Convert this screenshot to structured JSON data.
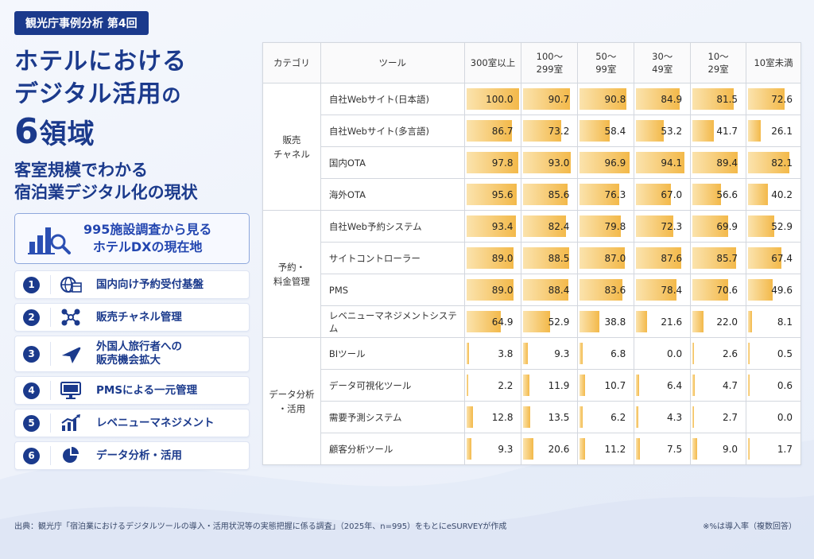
{
  "badge": "観光庁事例分析 第4回",
  "title": {
    "line1": "ホテルにおける",
    "line2_main": "デジタル活用",
    "line2_suffix": "の",
    "line3_num": "6",
    "line3_rest": "領域"
  },
  "subtitle": {
    "line1": "客室規模でわかる",
    "line2": "宿泊業デジタル化の現状"
  },
  "survey_box": {
    "icon": "bar-chart-magnifier-icon",
    "line1": "995施設調査から見る",
    "line2": "ホテルDXの現在地"
  },
  "areas": [
    {
      "num": "1",
      "icon": "globe-calendar-icon",
      "label": [
        "国内向け予約受付基盤"
      ]
    },
    {
      "num": "2",
      "icon": "network-nodes-icon",
      "label": [
        "販売チャネル管理"
      ]
    },
    {
      "num": "3",
      "icon": "airplane-icon",
      "label": [
        "外国人旅行者への",
        "販売機会拡大"
      ]
    },
    {
      "num": "4",
      "icon": "monitor-icon",
      "label": [
        "PMSによる一元管理"
      ]
    },
    {
      "num": "5",
      "icon": "trend-chart-icon",
      "label": [
        "レベニューマネジメント"
      ]
    },
    {
      "num": "6",
      "icon": "pie-chart-icon",
      "label": [
        "データ分析・活用"
      ]
    }
  ],
  "colors": {
    "navy": "#1b3a8c",
    "bar_light": "#fbe3ad",
    "bar_dark": "#f3b94a"
  },
  "table": {
    "headers": {
      "category": "カテゴリ",
      "tool": "ツール",
      "sizes": [
        [
          "300室以上"
        ],
        [
          "100〜",
          "299室"
        ],
        [
          "50〜",
          "99室"
        ],
        [
          "30〜",
          "49室"
        ],
        [
          "10〜",
          "29室"
        ],
        [
          "10室未満"
        ]
      ]
    },
    "groups": [
      {
        "name": [
          "販売",
          "チャネル"
        ],
        "rows": [
          {
            "tool": "自社Webサイト(日本語)",
            "values": [
              100.0,
              90.7,
              90.8,
              84.9,
              81.5,
              72.6
            ]
          },
          {
            "tool": "自社Webサイト(多言語)",
            "values": [
              86.7,
              73.2,
              58.4,
              53.2,
              41.7,
              26.1
            ]
          },
          {
            "tool": "国内OTA",
            "values": [
              97.8,
              93.0,
              96.9,
              94.1,
              89.4,
              82.1
            ]
          },
          {
            "tool": "海外OTA",
            "values": [
              95.6,
              85.6,
              76.3,
              67.0,
              56.6,
              40.2
            ]
          }
        ]
      },
      {
        "name": [
          "予約・",
          "料金管理"
        ],
        "rows": [
          {
            "tool": "自社Web予約システム",
            "values": [
              93.4,
              82.4,
              79.8,
              72.3,
              69.9,
              52.9
            ]
          },
          {
            "tool": "サイトコントローラー",
            "values": [
              89.0,
              88.5,
              87.0,
              87.6,
              85.7,
              67.4
            ]
          },
          {
            "tool": "PMS",
            "values": [
              89.0,
              88.4,
              83.6,
              78.4,
              70.6,
              49.6
            ]
          },
          {
            "tool": "レベニューマネジメントシステム",
            "values": [
              64.9,
              52.9,
              38.8,
              21.6,
              22.0,
              8.1
            ]
          }
        ]
      },
      {
        "name": [
          "データ分析",
          "・活用"
        ],
        "rows": [
          {
            "tool": "BIツール",
            "values": [
              3.8,
              9.3,
              6.8,
              0.0,
              2.6,
              0.5
            ]
          },
          {
            "tool": "データ可視化ツール",
            "values": [
              2.2,
              11.9,
              10.7,
              6.4,
              4.7,
              0.6
            ]
          },
          {
            "tool": "需要予測システム",
            "values": [
              12.8,
              13.5,
              6.2,
              4.3,
              2.7,
              0.0
            ]
          },
          {
            "tool": "顧客分析ツール",
            "values": [
              9.3,
              20.6,
              11.2,
              7.5,
              9.0,
              1.7
            ]
          }
        ]
      }
    ]
  },
  "footer": "出典：観光庁「宿泊業におけるデジタルツールの導入・活用状況等の実態把握に係る調査」（2025年、n=995）をもとにeSURVEYが作成",
  "note": "※%は導入率（複数回答）"
}
